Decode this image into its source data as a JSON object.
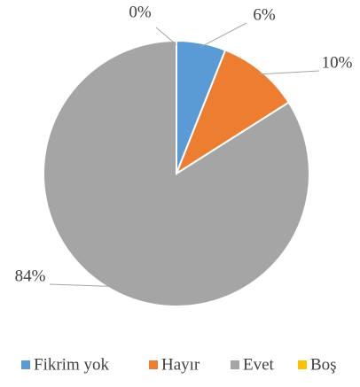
{
  "chart_data": {
    "type": "pie",
    "categories": [
      "Fikrim yok",
      "Hayır",
      "Evet",
      "Boş"
    ],
    "values": [
      6,
      10,
      84,
      0
    ],
    "value_labels": [
      "6%",
      "10%",
      "84%",
      "0%"
    ],
    "colors": [
      "#5b9bd5",
      "#ed7d31",
      "#a5a5a5",
      "#ffc000"
    ],
    "legend": "bottom"
  }
}
